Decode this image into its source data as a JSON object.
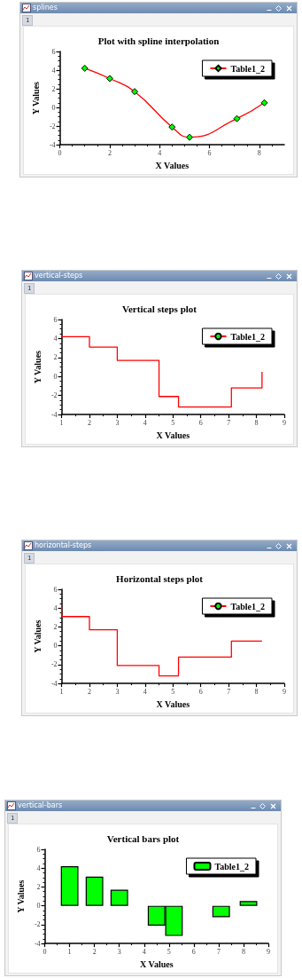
{
  "chart_data": [
    {
      "type": "line",
      "title": "Plot with spline interpolation",
      "subtitle": "splines",
      "annotations": [
        "1"
      ],
      "xlabel": "X Values",
      "ylabel": "Y Values",
      "x": [
        1,
        2,
        3,
        4.5,
        5.2,
        7.1,
        8.2
      ],
      "series": [
        {
          "name": "Table1_2",
          "color": "#ff0000",
          "values": [
            4.2,
            3.1,
            1.7,
            -2.1,
            -3.2,
            -1.2,
            0.5
          ]
        }
      ],
      "xlim": [
        0,
        9
      ],
      "xticks": [
        0,
        2,
        4,
        6,
        8
      ],
      "ylim": [
        -4,
        6
      ],
      "yticks": [
        -4,
        -2,
        0,
        2,
        4,
        6
      ],
      "legend": "top right",
      "grid": false,
      "marker": "diamond"
    },
    {
      "type": "step",
      "title": "Vertical steps plot",
      "subtitle": "vertical-steps",
      "annotations": [
        "1"
      ],
      "xlabel": "X Values",
      "ylabel": "Y Values",
      "x": [
        1,
        2,
        3,
        4.5,
        5.2,
        7.1,
        8.2
      ],
      "series": [
        {
          "name": "Table1_2",
          "color": "#ff0000",
          "values": [
            4.2,
            3.1,
            1.7,
            -2.1,
            -3.2,
            -1.2,
            0.5
          ]
        }
      ],
      "xlim": [
        1,
        9
      ],
      "xticks": [
        1,
        2,
        3,
        4,
        5,
        6,
        7,
        8,
        9
      ],
      "ylim": [
        -4,
        6
      ],
      "yticks": [
        -4,
        -2,
        0,
        2,
        4,
        6
      ],
      "legend": "top right",
      "grid": false
    },
    {
      "type": "step",
      "title": "Horizontal steps plot",
      "subtitle": "horizontal-steps",
      "annotations": [
        "1"
      ],
      "xlabel": "X Values",
      "ylabel": "Y Values",
      "x": [
        1,
        2,
        3,
        4.5,
        5.2,
        7.1,
        8.2
      ],
      "series": [
        {
          "name": "Table1_2",
          "color": "#ff0000",
          "values": [
            4.2,
            3.1,
            1.7,
            -2.1,
            -3.2,
            -1.2,
            0.5
          ]
        }
      ],
      "xlim": [
        1,
        9
      ],
      "xticks": [
        1,
        2,
        3,
        4,
        5,
        6,
        7,
        8,
        9
      ],
      "ylim": [
        -4,
        6
      ],
      "yticks": [
        -4,
        -2,
        0,
        2,
        4,
        6
      ],
      "legend": "top right",
      "grid": false
    },
    {
      "type": "bar",
      "title": "Vertical bars plot",
      "subtitle": "vertical-bars",
      "annotations": [
        "1"
      ],
      "xlabel": "X Values",
      "ylabel": "Y Values",
      "x": [
        1,
        2,
        3,
        4.5,
        5.2,
        7.1,
        8.2
      ],
      "series": [
        {
          "name": "Table1_2",
          "color": "#00ff00",
          "values": [
            4.2,
            3.1,
            1.7,
            -2.1,
            -3.2,
            -1.2,
            0.5
          ]
        }
      ],
      "xlim": [
        0,
        9
      ],
      "xticks": [
        0,
        1,
        2,
        3,
        4,
        5,
        6,
        7,
        8,
        9
      ],
      "ylim": [
        -4,
        6
      ],
      "yticks": [
        -4,
        -2,
        0,
        2,
        4,
        6
      ],
      "legend": "top right",
      "grid": false
    }
  ]
}
